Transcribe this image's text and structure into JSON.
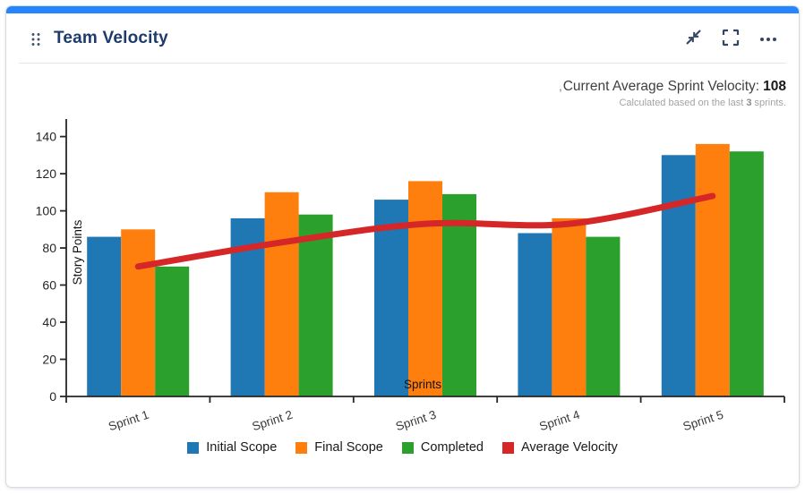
{
  "header": {
    "title": "Team Velocity",
    "icons": [
      "drag-handle-icon",
      "collapse-icon",
      "fullscreen-icon",
      "more-options-icon"
    ]
  },
  "summary": {
    "stray_mark": ",",
    "label": "Current Average Sprint Velocity:",
    "value": "108",
    "caption": {
      "prefix": "Calculated based on the last",
      "bold": "3",
      "suffix": "sprints."
    }
  },
  "chart_data": {
    "type": "bar",
    "title": "",
    "categories": [
      "Sprint 1",
      "Sprint 2",
      "Sprint 3",
      "Sprint 4",
      "Sprint 5"
    ],
    "series": [
      {
        "name": "Initial Scope",
        "type": "bar",
        "color": "#1f77b4",
        "values": [
          86,
          96,
          106,
          88,
          130
        ]
      },
      {
        "name": "Final Scope",
        "type": "bar",
        "color": "#ff7f0e",
        "values": [
          90,
          110,
          116,
          96,
          136
        ]
      },
      {
        "name": "Completed",
        "type": "bar",
        "color": "#2ca02c",
        "values": [
          70,
          98,
          109,
          86,
          132
        ]
      },
      {
        "name": "Average Velocity",
        "type": "line",
        "color": "#d62728",
        "values": [
          70,
          83,
          93,
          93,
          108
        ]
      }
    ],
    "xlabel": "Sprints",
    "ylabel": "Story Points",
    "ylim": [
      0,
      140
    ],
    "yticks": [
      0,
      20,
      40,
      60,
      80,
      100,
      120,
      140
    ],
    "grid": false,
    "legend_position": "bottom"
  },
  "colors": {
    "accent_bar": "#2684FF",
    "title_text": "#1d3b6d",
    "header_icons": "#344563",
    "axis": "#262626"
  }
}
